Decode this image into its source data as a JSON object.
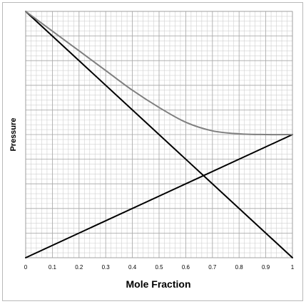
{
  "chart_data": {
    "type": "line",
    "title": "",
    "xlabel": "Mole Fraction",
    "ylabel": "Pressure",
    "xlim": [
      0,
      1
    ],
    "ylim": [
      0,
      1
    ],
    "x_ticks": [
      "0",
      "0.1",
      "0.2",
      "0.3",
      "0.4",
      "0.5",
      "0.6",
      "0.7",
      "0.8",
      "0.9",
      "1"
    ],
    "y_tick_labels_shown": false,
    "grid": true,
    "legend": "none",
    "series": [
      {
        "x": [
          0,
          1
        ],
        "y": [
          1.0,
          0.0
        ],
        "color": "#000000"
      },
      {
        "x": [
          0,
          1
        ],
        "y": [
          0.0,
          0.5
        ],
        "color": "#000000"
      },
      {
        "x": [
          0,
          0.1,
          0.2,
          0.3,
          0.4,
          0.5,
          0.6,
          0.7,
          0.8,
          0.9,
          1.0
        ],
        "y": [
          1.0,
          0.92,
          0.84,
          0.76,
          0.68,
          0.61,
          0.55,
          0.515,
          0.503,
          0.5,
          0.5
        ],
        "color": "#7f7f7f"
      }
    ]
  }
}
